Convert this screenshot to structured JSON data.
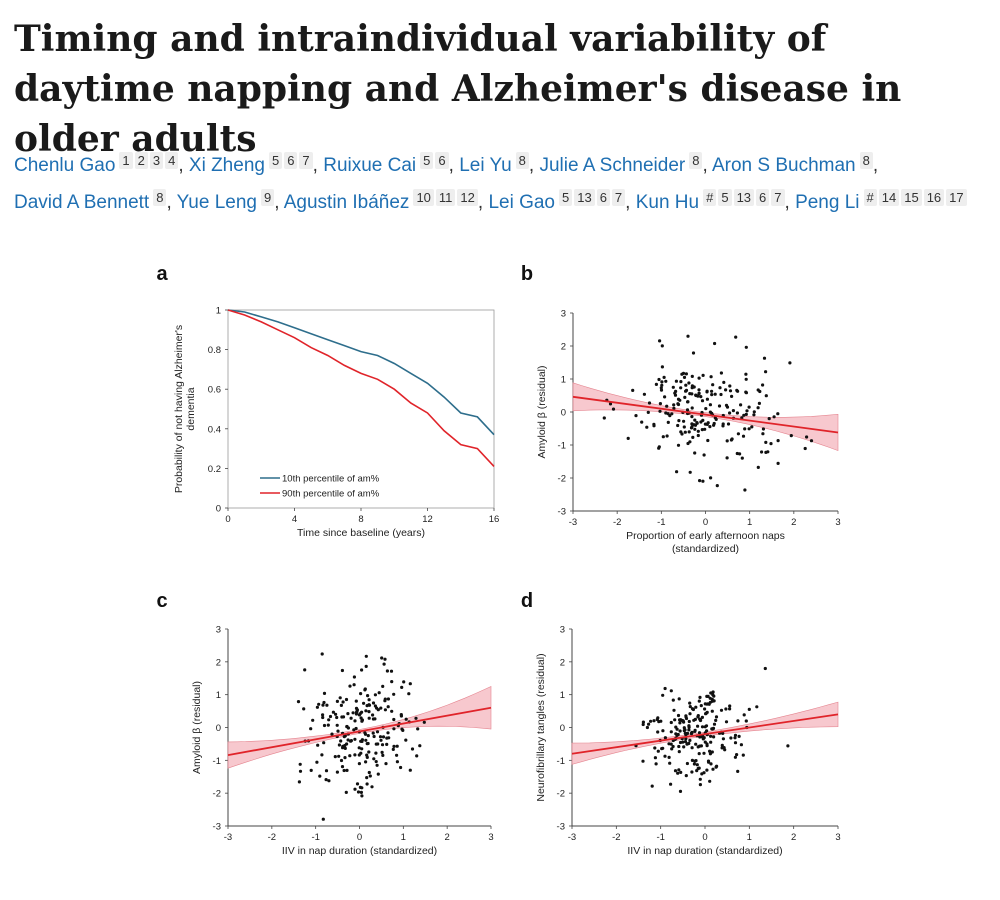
{
  "paper": {
    "title": "Timing and intraindividual variability of daytime napping and Alzheimer's disease in older adults",
    "authors": [
      {
        "name": "Chenlu Gao",
        "marks": [
          "1",
          "2",
          "3",
          "4"
        ]
      },
      {
        "name": "Xi Zheng",
        "marks": [
          "5",
          "6",
          "7"
        ]
      },
      {
        "name": "Ruixue Cai",
        "marks": [
          "5",
          "6"
        ]
      },
      {
        "name": "Lei Yu",
        "marks": [
          "8"
        ]
      },
      {
        "name": "Julie A Schneider",
        "marks": [
          "8"
        ]
      },
      {
        "name": "Aron S Buchman",
        "marks": [
          "8"
        ]
      },
      {
        "name": "David A Bennett",
        "marks": [
          "8"
        ]
      },
      {
        "name": "Yue Leng",
        "marks": [
          "9"
        ]
      },
      {
        "name": "Agustin Ibáñez",
        "marks": [
          "10",
          "11",
          "12"
        ]
      },
      {
        "name": "Lei Gao",
        "marks": [
          "5",
          "13",
          "6",
          "7"
        ]
      },
      {
        "name": "Kun Hu",
        "marks": [
          "#",
          "5",
          "13",
          "6",
          "7"
        ]
      },
      {
        "name": "Peng Li",
        "marks": [
          "#",
          "14",
          "15",
          "16",
          "17"
        ]
      }
    ]
  },
  "colors": {
    "blue_line": "#2e6e8c",
    "red_line": "#e0242a",
    "ci_fill": "#f4b6bd",
    "points": "#111111"
  },
  "chart_data": [
    {
      "panel": "a",
      "type": "line",
      "xlabel": "Time since baseline (years)",
      "ylabel": "Probability of not having Alzheimer's dementia",
      "ylabel_lines": [
        "Probability of not having Alzheimer's",
        "dementia"
      ],
      "xlim": [
        0,
        16
      ],
      "ylim": [
        0,
        1
      ],
      "xticks": [
        0,
        4,
        8,
        12,
        16
      ],
      "yticks": [
        0,
        0.2,
        0.4,
        0.6,
        0.8,
        1
      ],
      "ytick_labels": [
        "0",
        "0.2",
        "0.4",
        "0.6",
        "0.8",
        "1"
      ],
      "legend_position": "bottom-left",
      "series": [
        {
          "name": "10th percentile of am%",
          "color": "#2e6e8c",
          "x": [
            0,
            1,
            2,
            3,
            4,
            5,
            6,
            7,
            8,
            9,
            10,
            11,
            12,
            13,
            14,
            15,
            16
          ],
          "y": [
            1.0,
            0.99,
            0.965,
            0.94,
            0.91,
            0.88,
            0.85,
            0.82,
            0.79,
            0.77,
            0.73,
            0.68,
            0.63,
            0.56,
            0.48,
            0.46,
            0.37
          ]
        },
        {
          "name": "90th percentile of am%",
          "color": "#e0242a",
          "x": [
            0,
            1,
            2,
            3,
            4,
            5,
            6,
            7,
            8,
            9,
            10,
            11,
            12,
            13,
            14,
            15,
            16
          ],
          "y": [
            1.0,
            0.975,
            0.94,
            0.9,
            0.86,
            0.81,
            0.77,
            0.72,
            0.68,
            0.65,
            0.6,
            0.53,
            0.48,
            0.39,
            0.32,
            0.3,
            0.21
          ]
        }
      ]
    },
    {
      "panel": "b",
      "type": "scatter",
      "xlabel": "Proportion of early afternoon naps",
      "xlabel2": "(standardized)",
      "ylabel": "Amyloid β (residual)",
      "xlim": [
        -3,
        3
      ],
      "ylim": [
        -3,
        3
      ],
      "xticks": [
        -3,
        -2,
        -1,
        0,
        1,
        2,
        3
      ],
      "yticks": [
        -3,
        -2,
        -1,
        0,
        1,
        2,
        3
      ],
      "fit": {
        "intercept": -0.08,
        "slope": -0.18,
        "ci_left": [
          0.15,
          1.0
        ],
        "ci_right": [
          -1.2,
          -0.1
        ],
        "ci_center_x": -0.1
      },
      "points": {
        "n": 220,
        "x_spread": 0.85,
        "y_spread": 0.85,
        "x_center": -0.05
      }
    },
    {
      "panel": "c",
      "type": "scatter",
      "xlabel": "IIV in nap duration (standardized)",
      "ylabel": "Amyloid β (residual)",
      "xlim": [
        -3,
        3
      ],
      "ylim": [
        -3,
        3
      ],
      "xticks": [
        -3,
        -2,
        -1,
        0,
        1,
        2,
        3
      ],
      "yticks": [
        -3,
        -2,
        -1,
        0,
        1,
        2,
        3
      ],
      "fit": {
        "intercept": -0.12,
        "slope": 0.24,
        "ci_left": [
          -1.2,
          -0.4
        ],
        "ci_right": [
          -0.05,
          1.25
        ],
        "ci_center_x": 0.0
      },
      "points": {
        "n": 220,
        "x_spread": 0.6,
        "y_spread": 0.9,
        "x_center": 0.0
      }
    },
    {
      "panel": "d",
      "type": "scatter",
      "xlabel": "IIV in nap duration (standardized)",
      "ylabel": "Neurofibrillary tangles (residual)",
      "xlim": [
        -3,
        3
      ],
      "ylim": [
        -3,
        3
      ],
      "xticks": [
        -3,
        -2,
        -1,
        0,
        1,
        2,
        3
      ],
      "yticks": [
        -3,
        -2,
        -1,
        0,
        1,
        2,
        3
      ],
      "fit": {
        "intercept": -0.2,
        "slope": 0.2,
        "ci_left": [
          -1.1,
          -0.45
        ],
        "ci_right": [
          0.05,
          0.8
        ],
        "ci_center_x": -0.3
      },
      "points": {
        "n": 220,
        "x_spread": 0.55,
        "y_spread": 0.7,
        "x_center": -0.2
      }
    }
  ]
}
